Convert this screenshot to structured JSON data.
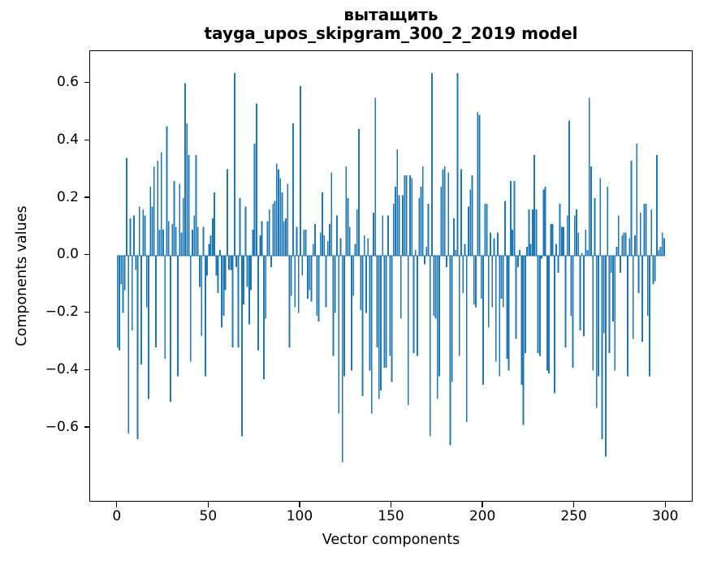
{
  "title": {
    "line1": "вытащить",
    "line2": "tayga_upos_skipgram_300_2_2019 model"
  },
  "chart_data": {
    "type": "bar",
    "title": "вытащить",
    "subtitle": "tayga_upos_skipgram_300_2_2019 model",
    "xlabel": "Vector components",
    "ylabel": "Components values",
    "xlim": [
      -15,
      315
    ],
    "ylim": [
      -0.86,
      0.712
    ],
    "grid": false,
    "legend": "none",
    "bar_color": "#1f77b4",
    "xticks": [
      0,
      50,
      100,
      150,
      200,
      250,
      300
    ],
    "xtick_labels": [
      "0",
      "50",
      "100",
      "150",
      "200",
      "250",
      "300"
    ],
    "yticks": [
      0.6,
      0.4,
      0.2,
      0.0,
      -0.2,
      -0.4,
      -0.6
    ],
    "ytick_labels": [
      "0.6",
      "0.4",
      "0.2",
      "0.0",
      "−0.2",
      "−0.4",
      "−0.6"
    ],
    "x_start": 0,
    "x_step": 1,
    "values": [
      -0.32,
      -0.33,
      -0.1,
      -0.2,
      -0.12,
      0.34,
      -0.62,
      0.13,
      -0.26,
      0.14,
      -0.05,
      -0.64,
      0.17,
      -0.38,
      0.16,
      0.14,
      -0.18,
      -0.5,
      0.24,
      0.17,
      0.31,
      -0.32,
      0.33,
      0.09,
      0.36,
      0.09,
      -0.36,
      0.45,
      0.12,
      -0.51,
      0.11,
      0.26,
      0.1,
      -0.42,
      0.25,
      0.08,
      0.2,
      0.6,
      0.46,
      0.35,
      -0.37,
      0.09,
      0.14,
      0.35,
      0.1,
      -0.11,
      -0.28,
      0.1,
      -0.42,
      -0.07,
      0.04,
      0.07,
      0.13,
      0.22,
      -0.07,
      -0.13,
      0.02,
      -0.25,
      -0.21,
      -0.12,
      0.3,
      -0.05,
      -0.05,
      -0.32,
      0.635,
      -0.04,
      -0.32,
      0.2,
      -0.63,
      -0.17,
      0.17,
      -0.11,
      -0.24,
      -0.12,
      0.09,
      0.39,
      0.53,
      -0.33,
      0.07,
      0.12,
      -0.43,
      -0.22,
      0.12,
      0.16,
      -0.04,
      0.18,
      0.19,
      0.32,
      0.3,
      0.27,
      0.22,
      0.12,
      0.13,
      0.25,
      -0.32,
      -0.14,
      0.46,
      -0.18,
      0.1,
      -0.2,
      0.59,
      -0.07,
      0.09,
      0.09,
      -0.15,
      -0.12,
      -0.16,
      0.04,
      0.11,
      -0.21,
      -0.23,
      0.08,
      0.22,
      0.07,
      -0.18,
      0.05,
      0.11,
      0.29,
      -0.35,
      -0.2,
      0.14,
      -0.55,
      0.06,
      -0.72,
      -0.42,
      0.31,
      0.2,
      0.1,
      -0.4,
      -0.14,
      0.04,
      0.16,
      0.44,
      -0.19,
      -0.49,
      0.07,
      -0.2,
      0.06,
      -0.4,
      -0.55,
      0.15,
      0.55,
      -0.32,
      -0.5,
      -0.47,
      0.14,
      -0.39,
      -0.39,
      0.14,
      -0.35,
      -0.44,
      0.18,
      0.24,
      0.37,
      0.21,
      -0.22,
      0.21,
      0.28,
      0.28,
      -0.52,
      0.28,
      0.27,
      -0.34,
      0.02,
      -0.35,
      0.2,
      0.24,
      0.31,
      -0.03,
      0.03,
      0.18,
      -0.63,
      0.635,
      -0.21,
      -0.22,
      -0.5,
      -0.42,
      0.24,
      0.3,
      0.31,
      -0.04,
      0.29,
      -0.66,
      -0.44,
      0.13,
      0.02,
      0.635,
      -0.35,
      0.3,
      -0.13,
      0.04,
      -0.58,
      0.17,
      0.23,
      0.28,
      -0.17,
      -0.18,
      0.5,
      0.49,
      -0.15,
      -0.45,
      0.18,
      0.18,
      -0.25,
      0.08,
      -0.18,
      0.06,
      -0.37,
      0.08,
      -0.42,
      -0.15,
      -0.18,
      0.19,
      -0.36,
      -0.4,
      0.26,
      0.09,
      0.26,
      -0.29,
      -0.04,
      0.02,
      -0.45,
      -0.59,
      -0.34,
      0.03,
      0.16,
      0.04,
      0.16,
      0.35,
      0.16,
      -0.34,
      -0.35,
      -0.01,
      0.23,
      0.24,
      -0.4,
      -0.41,
      0.11,
      0.11,
      -0.48,
      0.04,
      -0.06,
      0.18,
      0.1,
      0.1,
      -0.32,
      0.14,
      0.47,
      -0.21,
      -0.39,
      0.14,
      0.16,
      0.08,
      -0.26,
      0.01,
      -0.28,
      0.09,
      0.02,
      0.55,
      0.31,
      -0.4,
      0.2,
      -0.53,
      -0.42,
      0.27,
      -0.64,
      -0.27,
      -0.7,
      0.24,
      -0.34,
      -0.06,
      -0.23,
      -0.4,
      0.03,
      0.14,
      -0.06,
      0.07,
      0.08,
      0.08,
      -0.42,
      0.06,
      0.33,
      -0.29,
      0.07,
      0.39,
      -0.13,
      0.15,
      -0.3,
      0.18,
      0.18,
      -0.21,
      -0.42,
      0.16,
      -0.1,
      -0.09,
      0.35,
      0.02,
      0.03,
      0.08,
      0.06
    ]
  }
}
